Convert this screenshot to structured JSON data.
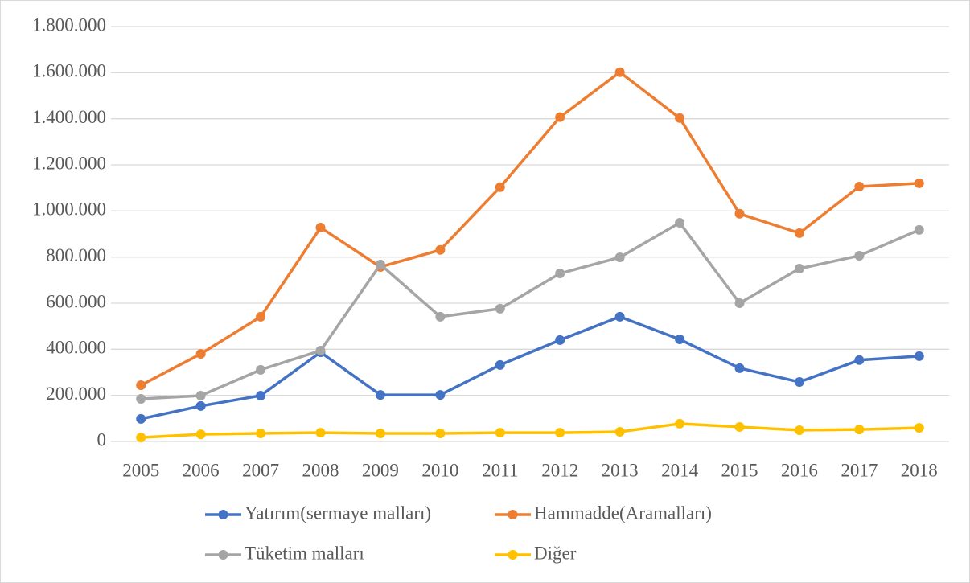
{
  "chart_data": {
    "type": "line",
    "x": [
      "2005",
      "2006",
      "2007",
      "2008",
      "2009",
      "2010",
      "2011",
      "2012",
      "2013",
      "2014",
      "2015",
      "2016",
      "2017",
      "2018"
    ],
    "series": [
      {
        "name": "Yatırım(sermaye malları)",
        "color": "#4472c4",
        "values": [
          98000,
          154000,
          199000,
          387000,
          202000,
          202000,
          332000,
          440000,
          541000,
          443000,
          318000,
          258000,
          353000,
          370000
        ]
      },
      {
        "name": "Hammadde(Aramalları)",
        "color": "#ed7d31",
        "values": [
          244000,
          380000,
          541000,
          928000,
          757000,
          831000,
          1103000,
          1407000,
          1602000,
          1403000,
          988000,
          904000,
          1106000,
          1120000
        ]
      },
      {
        "name": "Tüketim malları",
        "color": "#a5a5a5",
        "values": [
          185000,
          199000,
          311000,
          394000,
          768000,
          541000,
          576000,
          729000,
          799000,
          949000,
          600000,
          750000,
          806000,
          918000
        ]
      },
      {
        "name": "Diğer",
        "color": "#ffc000",
        "values": [
          17000,
          31000,
          35000,
          38000,
          35000,
          35000,
          38000,
          38000,
          42000,
          77000,
          63000,
          49000,
          52000,
          59000
        ]
      }
    ],
    "ylim": [
      0,
      1800000
    ],
    "yticks": [
      0,
      {
        "value": 200000,
        "label": "200.000"
      },
      {
        "value": 400000,
        "label": "400.000"
      },
      {
        "value": 600000,
        "label": "600.000"
      },
      {
        "value": 800000,
        "label": "800.000"
      },
      {
        "value": 1000000,
        "label": "1.000.000"
      },
      {
        "value": 1200000,
        "label": "1.200.000"
      },
      {
        "value": 1400000,
        "label": "1.400.000"
      },
      {
        "value": 1600000,
        "label": "1.600.000"
      },
      {
        "value": 1800000,
        "label": "1.800.000"
      }
    ],
    "grid": true
  }
}
